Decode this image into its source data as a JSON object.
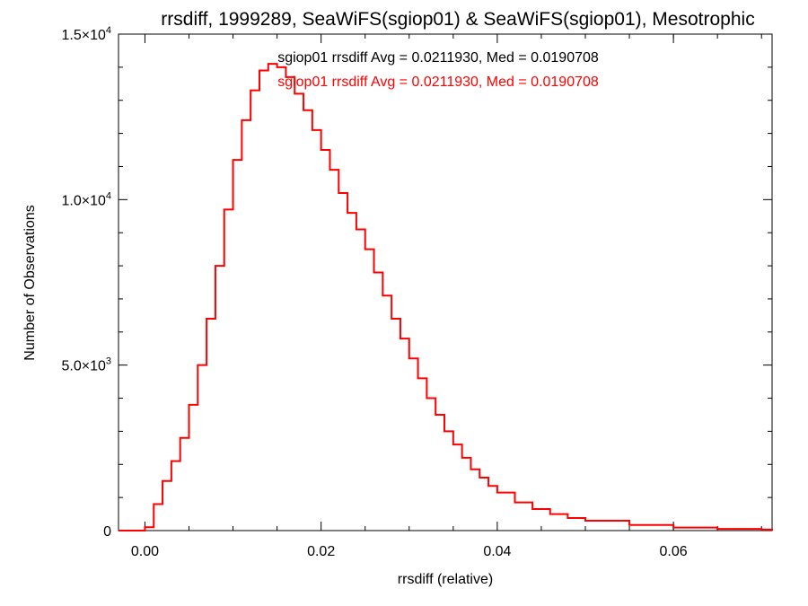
{
  "chart_data": {
    "type": "histogram",
    "title": "rrsdiff, 1999289, SeaWiFS(sgiop01) & SeaWiFS(sgiop01), Mesotrophic",
    "xlabel": "rrsdiff (relative)",
    "ylabel": "Number of Observations",
    "xlim": [
      -0.003,
      0.0712
    ],
    "ylim": [
      0,
      15000
    ],
    "x_ticks": [
      {
        "value": 0.0,
        "label": "0.00"
      },
      {
        "value": 0.02,
        "label": "0.02"
      },
      {
        "value": 0.04,
        "label": "0.04"
      },
      {
        "value": 0.06,
        "label": "0.06"
      }
    ],
    "y_ticks": [
      {
        "value": 0,
        "label": "0",
        "exp": ""
      },
      {
        "value": 5000,
        "label": "5.0×10",
        "exp": "3"
      },
      {
        "value": 10000,
        "label": "1.0×10",
        "exp": "4"
      },
      {
        "value": 15000,
        "label": "1.5×10",
        "exp": "4"
      }
    ],
    "annotations": [
      {
        "text": "sgiop01 rrsdiff Avg = 0.0211930, Med = 0.0190708",
        "color": "#000000"
      },
      {
        "text": "sgiop01 rrsdiff Avg = 0.0211930, Med = 0.0190708",
        "color": "#ff0000"
      }
    ],
    "series": [
      {
        "name": "sgiop01",
        "color": "#ff0000",
        "x": [
          -0.003,
          -0.001,
          0.0,
          0.001,
          0.002,
          0.003,
          0.004,
          0.005,
          0.006,
          0.007,
          0.008,
          0.009,
          0.01,
          0.011,
          0.012,
          0.013,
          0.014,
          0.015,
          0.016,
          0.017,
          0.018,
          0.019,
          0.02,
          0.021,
          0.022,
          0.023,
          0.024,
          0.025,
          0.026,
          0.027,
          0.028,
          0.029,
          0.03,
          0.031,
          0.032,
          0.033,
          0.034,
          0.035,
          0.036,
          0.037,
          0.038,
          0.039,
          0.04,
          0.042,
          0.044,
          0.046,
          0.048,
          0.05,
          0.055,
          0.06,
          0.065,
          0.07,
          0.0712
        ],
        "y": [
          0,
          0,
          100,
          800,
          1500,
          2100,
          2800,
          3800,
          5000,
          6400,
          8000,
          9700,
          11200,
          12400,
          13300,
          13900,
          14100,
          14000,
          13700,
          13200,
          12700,
          12100,
          11500,
          10900,
          10200,
          9600,
          9100,
          8500,
          7800,
          7100,
          6400,
          5800,
          5200,
          4600,
          4000,
          3500,
          3000,
          2600,
          2200,
          1850,
          1600,
          1350,
          1150,
          850,
          650,
          500,
          380,
          300,
          170,
          90,
          50,
          30,
          0
        ]
      }
    ]
  }
}
